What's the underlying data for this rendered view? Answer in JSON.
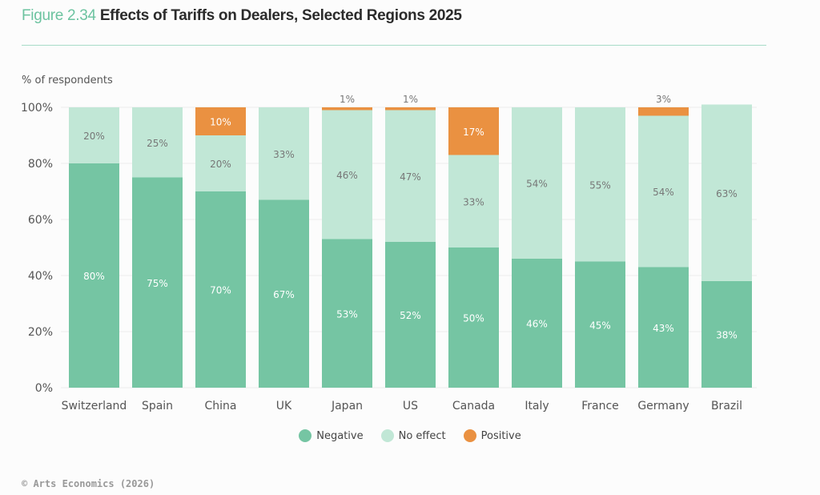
{
  "figure_label": "Figure 2.34",
  "title": "Effects of Tariffs on Dealers, Selected Regions 2025",
  "credit": "© Arts Economics (2026)",
  "chart_data": {
    "type": "bar",
    "stacked": true,
    "title": "Effects of Tariffs on Dealers, Selected Regions 2025",
    "xlabel": "",
    "ylabel": "% of respondents",
    "ylim": [
      0,
      100
    ],
    "yticks": [
      0,
      20,
      40,
      60,
      80,
      100
    ],
    "ytick_labels": [
      "0%",
      "20%",
      "40%",
      "60%",
      "80%",
      "100%"
    ],
    "grid": true,
    "legend_position": "bottom-center",
    "categories": [
      "Switzerland",
      "Spain",
      "China",
      "UK",
      "Japan",
      "US",
      "Canada",
      "Italy",
      "France",
      "Germany",
      "Brazil"
    ],
    "series": [
      {
        "name": "Negative",
        "color": "#75c5a3",
        "label_color": "#ffffff",
        "values": [
          80,
          75,
          70,
          67,
          53,
          52,
          50,
          46,
          45,
          43,
          38
        ]
      },
      {
        "name": "No effect",
        "color": "#c1e7d6",
        "label_color": "#777777",
        "values": [
          20,
          25,
          20,
          33,
          46,
          47,
          33,
          54,
          55,
          54,
          63
        ]
      },
      {
        "name": "Positive",
        "color": "#ea9141",
        "label_color": "#ffffff",
        "values": [
          0,
          0,
          10,
          0,
          1,
          1,
          17,
          0,
          0,
          3,
          0
        ]
      }
    ]
  }
}
